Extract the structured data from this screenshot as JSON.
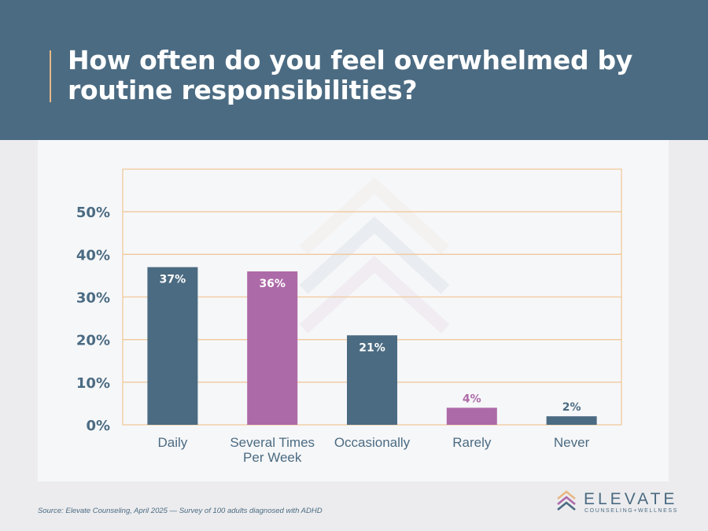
{
  "header": {
    "title": "How often do you feel overwhelmed by routine responsibilities?"
  },
  "chart_data": {
    "type": "bar",
    "title": "How often do you feel overwhelmed by routine responsibilities?",
    "categories": [
      "Daily",
      "Several Times Per Week",
      "Occasionally",
      "Rarely",
      "Never"
    ],
    "category_lines": [
      [
        "Daily"
      ],
      [
        "Several Times",
        "Per Week"
      ],
      [
        "Occasionally"
      ],
      [
        "Rarely"
      ],
      [
        "Never"
      ]
    ],
    "values": [
      37,
      36,
      21,
      4,
      2
    ],
    "value_labels": [
      "37%",
      "36%",
      "21%",
      "4%",
      "2%"
    ],
    "bar_colors": [
      "#4b6b82",
      "#ad6aa8",
      "#4b6b82",
      "#ad6aa8",
      "#4b6b82"
    ],
    "ylim": [
      0,
      60
    ],
    "yticks": [
      0,
      10,
      20,
      30,
      40,
      50
    ],
    "ytick_labels": [
      "0%",
      "10%",
      "20%",
      "30%",
      "40%",
      "50%"
    ],
    "grid": true,
    "grid_color": "#f0c99a",
    "xlabel": "",
    "ylabel": ""
  },
  "footer": {
    "source": "Source: Elevate Counseling, April 2025 — Survey of 100 adults diagnosed with ADHD"
  },
  "logo": {
    "name": "ELEVATE",
    "tagline": "COUNSELING+WELLNESS"
  },
  "colors": {
    "header_bg": "#4b6b82",
    "accent": "#e6b886",
    "primary": "#4b6b82",
    "secondary": "#ad6aa8"
  }
}
